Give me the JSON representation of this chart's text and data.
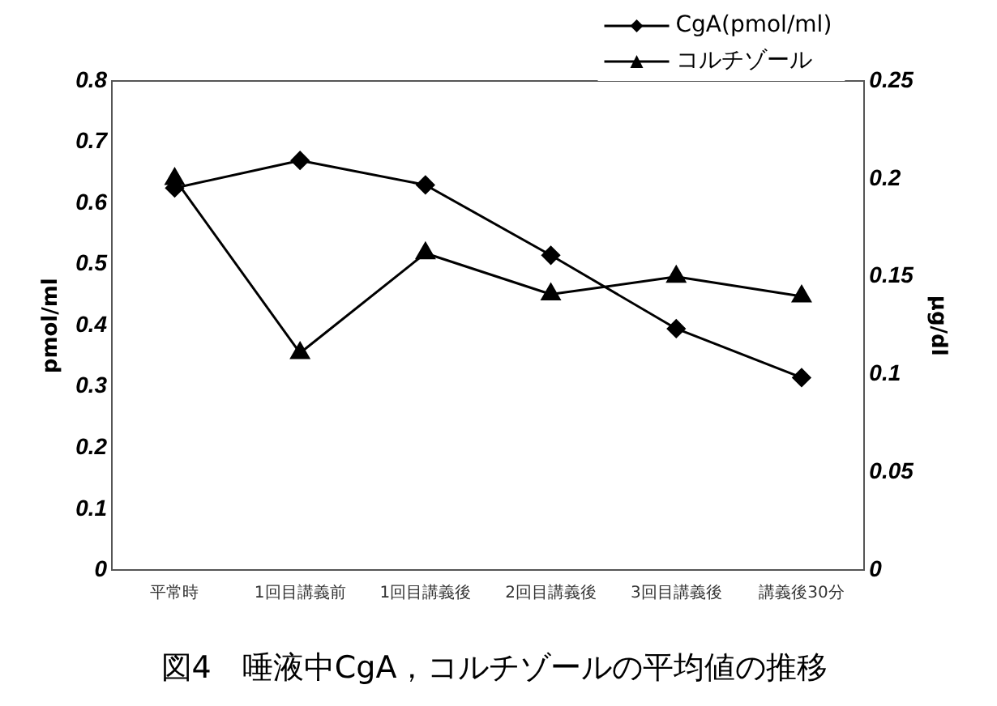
{
  "chart_data": {
    "type": "line",
    "title": "図4　唾液中CgA，コルチゾールの平均値の推移",
    "ylabel": "pmol/ml",
    "y2label": "μg/dl",
    "categories": [
      "平常時",
      "1回目講義前",
      "1回目講義後",
      "2回目講義後",
      "3回目講義後",
      "講義後30分"
    ],
    "series": [
      {
        "name": "CgA(pmol/ml)",
        "color": "#000000",
        "marker": "diamond",
        "values": [
          0.625,
          0.67,
          0.63,
          0.515,
          0.395,
          0.315
        ]
      },
      {
        "name": "コルチゾール",
        "color": "#000000",
        "marker": "triangle",
        "axis": "y2",
        "values": [
          0.2,
          0.111,
          0.162,
          0.141,
          0.15,
          0.14
        ]
      }
    ],
    "ylim": [
      0,
      0.8
    ],
    "yticks": [
      0,
      0.1,
      0.2,
      0.3,
      0.4,
      0.5,
      0.6,
      0.7,
      0.8
    ],
    "y2lim": [
      0,
      0.25
    ],
    "y2ticks": [
      0,
      0.05,
      0.1,
      0.15,
      0.2,
      0.25
    ],
    "grid": false,
    "legend": "top right",
    "line_style": "solid"
  }
}
